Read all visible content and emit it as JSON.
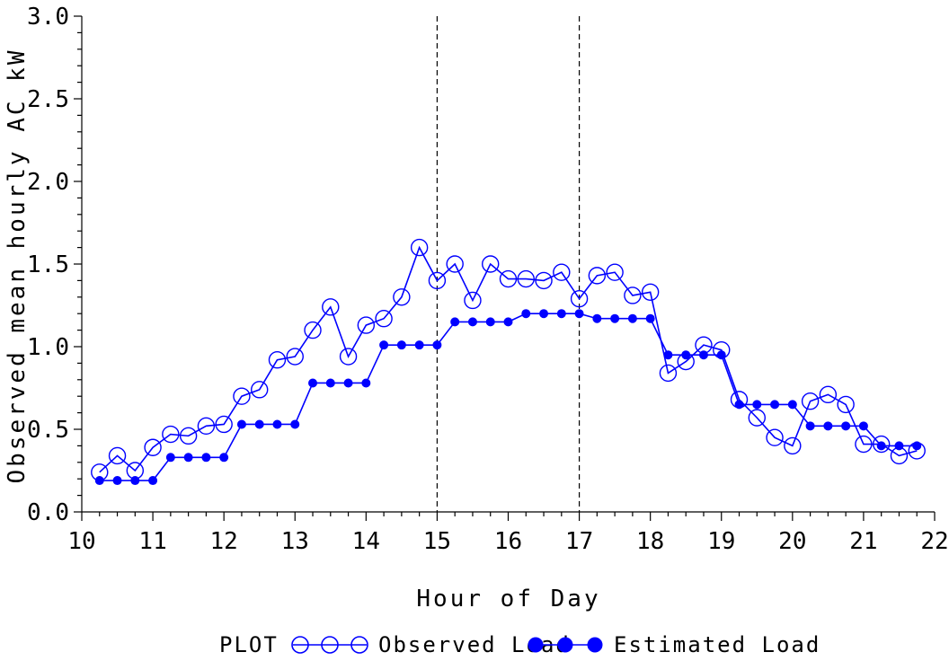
{
  "chart_data": {
    "type": "line",
    "title": "",
    "xlabel": "Hour of Day",
    "ylabel": "Observed mean hourly AC kW",
    "xlim": [
      10,
      22
    ],
    "ylim": [
      0,
      3
    ],
    "xticks": [
      10,
      11,
      12,
      13,
      14,
      15,
      16,
      17,
      18,
      19,
      20,
      21,
      22
    ],
    "xtick_labels": [
      "10",
      "11",
      "12",
      "13",
      "14",
      "15",
      "16",
      "17",
      "18",
      "19",
      "20",
      "21",
      "22"
    ],
    "yticks": [
      0,
      0.5,
      1,
      1.5,
      2,
      2.5,
      3
    ],
    "ytick_labels": [
      "0.0",
      "0.5",
      "1.0",
      "1.5",
      "2.0",
      "2.5",
      "3.0"
    ],
    "reference_lines_x": [
      15,
      17
    ],
    "grid": false,
    "legend": {
      "position": "bottom",
      "title": "PLOT"
    },
    "series": [
      {
        "name": "Observed Load",
        "color": "#0000ff",
        "marker": "open-circle",
        "points": [
          [
            10.25,
            0.24
          ],
          [
            10.5,
            0.34
          ],
          [
            10.75,
            0.25
          ],
          [
            11.0,
            0.39
          ],
          [
            11.25,
            0.47
          ],
          [
            11.5,
            0.46
          ],
          [
            11.75,
            0.52
          ],
          [
            12.0,
            0.53
          ],
          [
            12.25,
            0.7
          ],
          [
            12.5,
            0.74
          ],
          [
            12.75,
            0.92
          ],
          [
            13.0,
            0.94
          ],
          [
            13.25,
            1.1
          ],
          [
            13.5,
            1.24
          ],
          [
            13.75,
            0.94
          ],
          [
            14.0,
            1.13
          ],
          [
            14.25,
            1.17
          ],
          [
            14.5,
            1.3
          ],
          [
            14.75,
            1.6
          ],
          [
            15.0,
            1.4
          ],
          [
            15.25,
            1.5
          ],
          [
            15.5,
            1.28
          ],
          [
            15.75,
            1.5
          ],
          [
            16.0,
            1.41
          ],
          [
            16.25,
            1.41
          ],
          [
            16.5,
            1.4
          ],
          [
            16.75,
            1.45
          ],
          [
            17.0,
            1.29
          ],
          [
            17.25,
            1.43
          ],
          [
            17.5,
            1.45
          ],
          [
            17.75,
            1.31
          ],
          [
            18.0,
            1.33
          ],
          [
            18.25,
            0.84
          ],
          [
            18.5,
            0.91
          ],
          [
            18.75,
            1.01
          ],
          [
            19.0,
            0.98
          ],
          [
            19.25,
            0.68
          ],
          [
            19.5,
            0.57
          ],
          [
            19.75,
            0.45
          ],
          [
            20.0,
            0.4
          ],
          [
            20.25,
            0.67
          ],
          [
            20.5,
            0.71
          ],
          [
            20.75,
            0.65
          ],
          [
            21.0,
            0.41
          ],
          [
            21.25,
            0.41
          ],
          [
            21.5,
            0.34
          ],
          [
            21.75,
            0.37
          ]
        ]
      },
      {
        "name": "Estimated Load",
        "color": "#0000ff",
        "marker": "filled-circle",
        "points": [
          [
            10.25,
            0.19
          ],
          [
            10.5,
            0.19
          ],
          [
            10.75,
            0.19
          ],
          [
            11.0,
            0.19
          ],
          [
            11.25,
            0.33
          ],
          [
            11.5,
            0.33
          ],
          [
            11.75,
            0.33
          ],
          [
            12.0,
            0.33
          ],
          [
            12.25,
            0.53
          ],
          [
            12.5,
            0.53
          ],
          [
            12.75,
            0.53
          ],
          [
            13.0,
            0.53
          ],
          [
            13.25,
            0.78
          ],
          [
            13.5,
            0.78
          ],
          [
            13.75,
            0.78
          ],
          [
            14.0,
            0.78
          ],
          [
            14.25,
            1.01
          ],
          [
            14.5,
            1.01
          ],
          [
            14.75,
            1.01
          ],
          [
            15.0,
            1.01
          ],
          [
            15.25,
            1.15
          ],
          [
            15.5,
            1.15
          ],
          [
            15.75,
            1.15
          ],
          [
            16.0,
            1.15
          ],
          [
            16.25,
            1.2
          ],
          [
            16.5,
            1.2
          ],
          [
            16.75,
            1.2
          ],
          [
            17.0,
            1.2
          ],
          [
            17.25,
            1.17
          ],
          [
            17.5,
            1.17
          ],
          [
            17.75,
            1.17
          ],
          [
            18.0,
            1.17
          ],
          [
            18.25,
            0.95
          ],
          [
            18.5,
            0.95
          ],
          [
            18.75,
            0.95
          ],
          [
            19.0,
            0.95
          ],
          [
            19.25,
            0.65
          ],
          [
            19.5,
            0.65
          ],
          [
            19.75,
            0.65
          ],
          [
            20.0,
            0.65
          ],
          [
            20.25,
            0.52
          ],
          [
            20.5,
            0.52
          ],
          [
            20.75,
            0.52
          ],
          [
            21.0,
            0.52
          ],
          [
            21.25,
            0.4
          ],
          [
            21.5,
            0.4
          ],
          [
            21.75,
            0.4
          ]
        ]
      }
    ]
  }
}
